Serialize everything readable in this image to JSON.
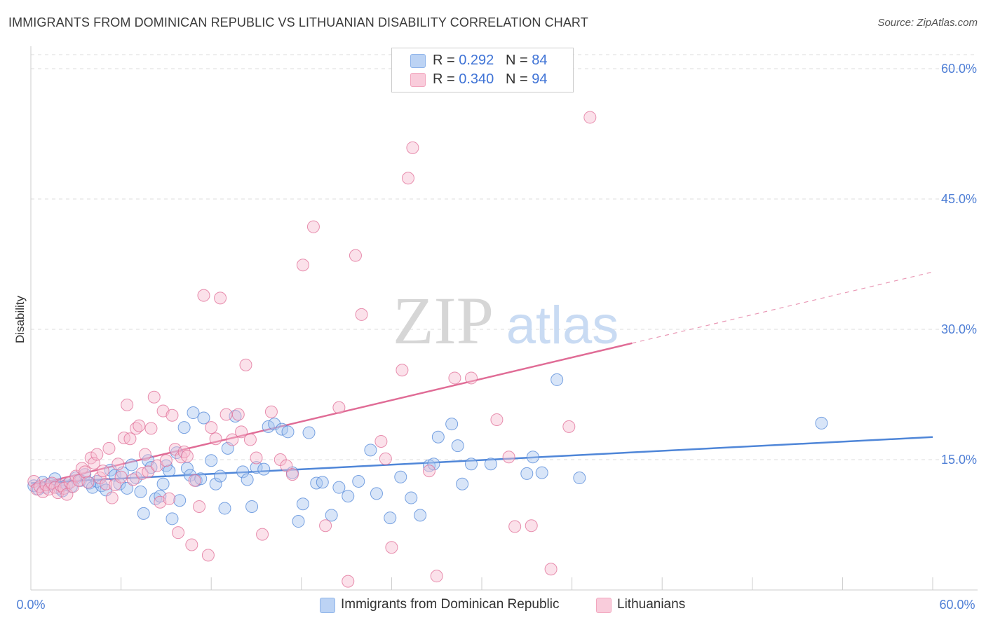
{
  "header": {
    "title": "IMMIGRANTS FROM DOMINICAN REPUBLIC VS LITHUANIAN DISABILITY CORRELATION CHART",
    "source": "Source: ZipAtlas.com"
  },
  "watermark": {
    "zip": "ZIP",
    "atlas": "atlas"
  },
  "legend": {
    "rows": [
      {
        "r_label": "R = ",
        "r_value": "0.292",
        "n_label": "N = ",
        "n_value": "84",
        "color": "#8fb4ea"
      },
      {
        "r_label": "R = ",
        "r_value": "0.340",
        "n_label": "N = ",
        "n_value": "94",
        "color": "#f2a6be"
      }
    ]
  },
  "bottom_legend": [
    {
      "label": "Immigrants from Dominican Republic",
      "color": "#8fb4ea"
    },
    {
      "label": "Lithuanians",
      "color": "#f2a6be"
    }
  ],
  "chart_data": {
    "type": "scatter",
    "title": "IMMIGRANTS FROM DOMINICAN REPUBLIC VS LITHUANIAN DISABILITY CORRELATION CHART",
    "xlabel": "",
    "ylabel": "Disability",
    "xlim": [
      0,
      60
    ],
    "ylim": [
      0,
      60
    ],
    "x_tick_labels": [
      "0.0%",
      "60.0%"
    ],
    "y_ticks": [
      15,
      30,
      45,
      60
    ],
    "y_tick_labels": [
      "15.0%",
      "30.0%",
      "45.0%",
      "60.0%"
    ],
    "grid": true,
    "legend_position": "top-center",
    "series": [
      {
        "name": "Immigrants from Dominican Republic",
        "color": "#4f86d8",
        "fill": "#a8c6f0",
        "R": 0.292,
        "N": 84,
        "trend": {
          "x": [
            0,
            60
          ],
          "y": [
            12.3,
            17.6
          ],
          "solid_to_x": 60
        },
        "points": [
          [
            0.2,
            12.0
          ],
          [
            0.5,
            11.6
          ],
          [
            0.8,
            12.4
          ],
          [
            1.0,
            11.8
          ],
          [
            1.3,
            12.2
          ],
          [
            1.6,
            12.8
          ],
          [
            1.9,
            11.7
          ],
          [
            2.1,
            11.4
          ],
          [
            2.4,
            12.1
          ],
          [
            2.7,
            11.9
          ],
          [
            3.0,
            12.9
          ],
          [
            3.3,
            12.6
          ],
          [
            3.6,
            13.3
          ],
          [
            3.9,
            12.3
          ],
          [
            4.1,
            11.8
          ],
          [
            4.4,
            12.5
          ],
          [
            4.7,
            12.0
          ],
          [
            5.0,
            11.5
          ],
          [
            5.3,
            13.8
          ],
          [
            5.6,
            13.2
          ],
          [
            5.9,
            12.2
          ],
          [
            6.1,
            13.5
          ],
          [
            6.4,
            11.7
          ],
          [
            6.7,
            14.4
          ],
          [
            7.0,
            12.9
          ],
          [
            7.3,
            11.3
          ],
          [
            7.5,
            8.8
          ],
          [
            7.8,
            14.9
          ],
          [
            8.0,
            14.1
          ],
          [
            8.3,
            10.5
          ],
          [
            8.6,
            10.8
          ],
          [
            8.8,
            12.2
          ],
          [
            9.0,
            14.3
          ],
          [
            9.2,
            13.7
          ],
          [
            9.4,
            8.2
          ],
          [
            9.7,
            15.8
          ],
          [
            9.9,
            10.3
          ],
          [
            10.2,
            18.7
          ],
          [
            10.4,
            14.0
          ],
          [
            10.6,
            13.2
          ],
          [
            10.8,
            20.4
          ],
          [
            11.0,
            12.6
          ],
          [
            11.3,
            12.8
          ],
          [
            11.5,
            19.8
          ],
          [
            12.0,
            14.9
          ],
          [
            12.3,
            12.2
          ],
          [
            12.6,
            13.1
          ],
          [
            12.9,
            9.4
          ],
          [
            13.1,
            16.3
          ],
          [
            13.6,
            20.0
          ],
          [
            14.1,
            13.6
          ],
          [
            14.4,
            12.7
          ],
          [
            14.7,
            9.6
          ],
          [
            15.0,
            14.1
          ],
          [
            15.5,
            13.9
          ],
          [
            15.8,
            18.8
          ],
          [
            16.2,
            19.1
          ],
          [
            16.7,
            18.5
          ],
          [
            17.1,
            18.2
          ],
          [
            17.4,
            13.5
          ],
          [
            17.8,
            7.9
          ],
          [
            18.1,
            9.9
          ],
          [
            18.5,
            18.1
          ],
          [
            19.0,
            12.3
          ],
          [
            19.4,
            12.4
          ],
          [
            20.0,
            8.6
          ],
          [
            20.5,
            11.8
          ],
          [
            21.1,
            10.8
          ],
          [
            21.8,
            12.5
          ],
          [
            22.6,
            16.1
          ],
          [
            23.0,
            11.1
          ],
          [
            23.9,
            8.3
          ],
          [
            24.6,
            13.0
          ],
          [
            25.3,
            10.6
          ],
          [
            25.9,
            8.6
          ],
          [
            26.5,
            14.3
          ],
          [
            26.8,
            14.5
          ],
          [
            27.1,
            17.6
          ],
          [
            28.0,
            19.1
          ],
          [
            28.4,
            16.6
          ],
          [
            28.7,
            12.2
          ],
          [
            29.3,
            14.5
          ],
          [
            30.6,
            14.5
          ],
          [
            33.0,
            13.4
          ],
          [
            33.4,
            15.3
          ],
          [
            34.0,
            13.5
          ],
          [
            35.0,
            24.2
          ],
          [
            36.5,
            12.9
          ],
          [
            52.6,
            19.2
          ]
        ]
      },
      {
        "name": "Lithuanians",
        "color": "#e06c96",
        "fill": "#f6bcd0",
        "R": 0.34,
        "N": 94,
        "trend": {
          "x": [
            0,
            60
          ],
          "y": [
            12.0,
            36.6
          ],
          "solid_to_x": 40
        },
        "points": [
          [
            0.2,
            12.5
          ],
          [
            0.4,
            11.6
          ],
          [
            0.6,
            11.9
          ],
          [
            0.8,
            11.3
          ],
          [
            1.0,
            12.1
          ],
          [
            1.2,
            11.6
          ],
          [
            1.4,
            12.3
          ],
          [
            1.6,
            11.8
          ],
          [
            1.8,
            11.2
          ],
          [
            2.0,
            12.0
          ],
          [
            2.2,
            11.7
          ],
          [
            2.4,
            11.0
          ],
          [
            2.6,
            12.4
          ],
          [
            2.8,
            11.9
          ],
          [
            3.0,
            13.1
          ],
          [
            3.2,
            12.6
          ],
          [
            3.4,
            14.0
          ],
          [
            3.6,
            13.6
          ],
          [
            3.8,
            12.4
          ],
          [
            4.0,
            15.2
          ],
          [
            4.2,
            14.6
          ],
          [
            4.4,
            15.6
          ],
          [
            4.6,
            12.9
          ],
          [
            4.8,
            13.7
          ],
          [
            5.0,
            12.2
          ],
          [
            5.2,
            16.3
          ],
          [
            5.4,
            10.6
          ],
          [
            5.6,
            12.1
          ],
          [
            5.8,
            14.5
          ],
          [
            6.0,
            13.0
          ],
          [
            6.2,
            17.5
          ],
          [
            6.4,
            21.3
          ],
          [
            6.6,
            17.4
          ],
          [
            6.8,
            12.7
          ],
          [
            7.0,
            18.6
          ],
          [
            7.2,
            18.9
          ],
          [
            7.4,
            13.4
          ],
          [
            7.6,
            15.6
          ],
          [
            7.8,
            13.6
          ],
          [
            8.0,
            18.6
          ],
          [
            8.2,
            22.2
          ],
          [
            8.4,
            14.3
          ],
          [
            8.6,
            10.1
          ],
          [
            8.8,
            20.6
          ],
          [
            9.0,
            14.9
          ],
          [
            9.2,
            10.5
          ],
          [
            9.4,
            20.1
          ],
          [
            9.6,
            16.2
          ],
          [
            9.8,
            6.6
          ],
          [
            10.0,
            15.3
          ],
          [
            10.2,
            15.9
          ],
          [
            10.4,
            15.4
          ],
          [
            10.7,
            5.2
          ],
          [
            10.9,
            12.6
          ],
          [
            11.2,
            9.6
          ],
          [
            11.5,
            33.9
          ],
          [
            11.8,
            4.0
          ],
          [
            12.0,
            18.7
          ],
          [
            12.3,
            17.4
          ],
          [
            12.6,
            33.6
          ],
          [
            13.0,
            20.2
          ],
          [
            13.4,
            17.3
          ],
          [
            13.8,
            20.2
          ],
          [
            14.0,
            18.2
          ],
          [
            14.3,
            25.9
          ],
          [
            14.6,
            17.3
          ],
          [
            15.0,
            15.2
          ],
          [
            15.4,
            6.4
          ],
          [
            16.0,
            20.5
          ],
          [
            16.6,
            15.0
          ],
          [
            17.0,
            14.3
          ],
          [
            17.4,
            13.3
          ],
          [
            18.1,
            37.4
          ],
          [
            18.8,
            41.8
          ],
          [
            19.6,
            7.4
          ],
          [
            20.5,
            21.0
          ],
          [
            21.1,
            1.0
          ],
          [
            21.6,
            38.5
          ],
          [
            22.0,
            31.7
          ],
          [
            23.3,
            17.1
          ],
          [
            23.6,
            15.1
          ],
          [
            24.0,
            4.9
          ],
          [
            24.7,
            25.3
          ],
          [
            25.1,
            47.4
          ],
          [
            25.4,
            50.9
          ],
          [
            26.5,
            13.7
          ],
          [
            27.0,
            1.6
          ],
          [
            28.2,
            24.4
          ],
          [
            29.3,
            24.4
          ],
          [
            31.0,
            19.6
          ],
          [
            31.8,
            15.3
          ],
          [
            32.2,
            7.3
          ],
          [
            33.3,
            7.4
          ],
          [
            34.6,
            2.4
          ],
          [
            35.8,
            18.8
          ],
          [
            37.2,
            54.4
          ]
        ]
      }
    ]
  }
}
